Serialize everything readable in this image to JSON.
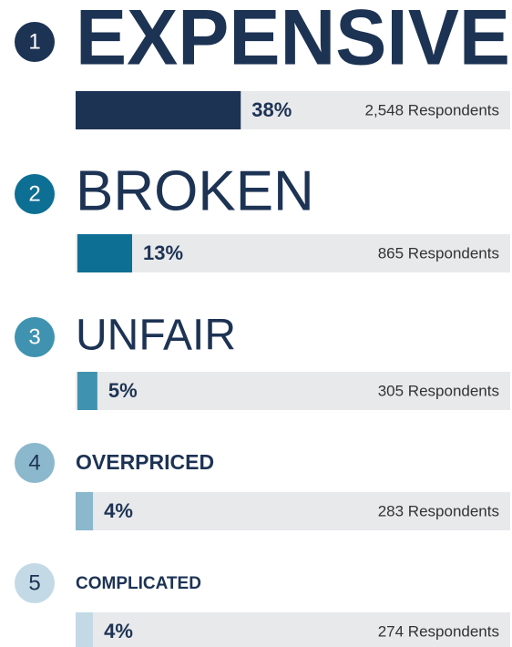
{
  "chart_data": {
    "type": "bar",
    "ranks": [
      1,
      2,
      3,
      4,
      5
    ],
    "categories": [
      "EXPENSIVE",
      "BROKEN",
      "UNFAIR",
      "OVERPRICED",
      "COMPLICATED"
    ],
    "values": [
      38,
      13,
      5,
      4,
      4
    ],
    "value_labels": [
      "38%",
      "13%",
      "5%",
      "4%",
      "4%"
    ],
    "respondents": [
      "2,548 Respondents",
      "865 Respondents",
      "305 Respondents",
      "283 Respondents",
      "274 Respondents"
    ],
    "colors": [
      "#1d3354",
      "#0e6f94",
      "#3f93b0",
      "#8bb8cc",
      "#c3dae6"
    ],
    "xlim": [
      0,
      100
    ]
  }
}
